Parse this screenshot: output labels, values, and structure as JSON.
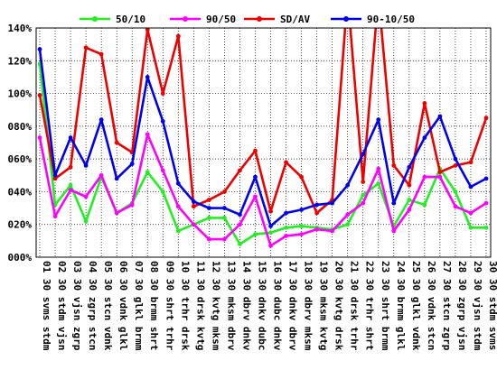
{
  "chart_data": {
    "type": "line",
    "ylim": [
      0,
      140
    ],
    "y_ticks": [
      "000%",
      "020%",
      "040%",
      "060%",
      "080%",
      "100%",
      "120%",
      "140%"
    ],
    "y_tick_values": [
      0,
      20,
      40,
      60,
      80,
      100,
      120,
      140
    ],
    "grid": true,
    "legend_position": "top",
    "categories": [
      "01 30 svms stdm",
      "02 30 stdm vjsn",
      "03 30 vjsn zgrp",
      "04 30 zgrp stcn",
      "05 30 stcn vdnk",
      "06 30 vdnk glkl",
      "07 30 glkl brmm",
      "08 30 brmm shrt",
      "09 30 shrt trhr",
      "10 30 trhr drsk",
      "11 30 drsk kvtg",
      "12 30 kvtg mksm",
      "13 30 mksm dbrv",
      "14 30 dbrv dnkv",
      "15 30 dnkv dubc",
      "16 30 dubc dnkv",
      "17 30 dnkv dbrv",
      "18 30 dbrv mksm",
      "19 30 mksm kvtg",
      "20 30 kvtg drsk",
      "21 30 drsk trhr",
      "22 30 trhr shrt",
      "23 30 shrt brmm",
      "24 30 brmm glkl",
      "25 30 glkl vdnk",
      "26 30 vdnk stcn",
      "27 30 stcn zgrp",
      "28 30 zgrp vjsn",
      "29 30 vjsn stdm",
      "30 30 stdm svms"
    ],
    "series": [
      {
        "name": "50/10",
        "color": "#22ee22",
        "values": [
          118,
          32,
          44,
          22,
          49,
          27,
          33,
          52,
          40,
          16,
          20,
          24,
          24,
          8,
          14,
          15,
          18,
          19,
          18,
          17,
          20,
          38,
          45,
          19,
          35,
          32,
          54,
          40,
          18,
          18
        ]
      },
      {
        "name": "90/50",
        "color": "#ff00ff",
        "values": [
          73,
          25,
          41,
          37,
          50,
          27,
          32,
          75,
          53,
          31,
          20,
          11,
          11,
          20,
          37,
          7,
          13,
          14,
          17,
          16,
          26,
          33,
          54,
          16,
          29,
          49,
          49,
          31,
          27,
          33
        ]
      },
      {
        "name": "SD/AV",
        "color": "#ee0000",
        "values": [
          99,
          48,
          55,
          128,
          124,
          70,
          64,
          139,
          100,
          135,
          31,
          35,
          40,
          53,
          65,
          28,
          58,
          49,
          27,
          35,
          160,
          46,
          160,
          56,
          44,
          94,
          52,
          56,
          58,
          85
        ]
      },
      {
        "name": "90-10/50",
        "color": "#0000ee",
        "values": [
          127,
          50,
          73,
          56,
          84,
          48,
          57,
          110,
          83,
          45,
          34,
          30,
          30,
          26,
          49,
          19,
          27,
          29,
          32,
          33,
          44,
          63,
          84,
          33,
          55,
          73,
          86,
          60,
          43,
          48
        ]
      }
    ]
  }
}
